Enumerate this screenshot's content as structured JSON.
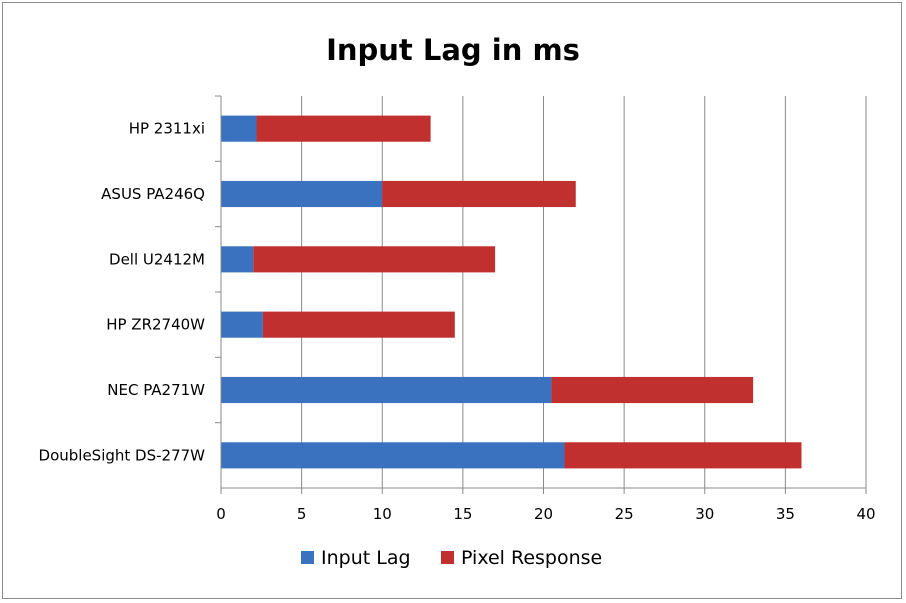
{
  "chart_data": {
    "type": "bar",
    "orientation": "horizontal",
    "stacked": true,
    "title": "Input Lag in ms",
    "xlabel": "",
    "ylabel": "",
    "categories": [
      "HP 2311xi",
      "ASUS PA246Q",
      "Dell U2412M",
      "HP ZR2740W",
      "NEC PA271W",
      "DoubleSight DS-277W"
    ],
    "series": [
      {
        "name": "Input Lag",
        "color": "#3b72c0",
        "values": [
          2.2,
          10.0,
          2.0,
          2.6,
          20.5,
          21.3
        ]
      },
      {
        "name": "Pixel Response",
        "color": "#c0302f",
        "values": [
          10.8,
          12.0,
          15.0,
          11.9,
          12.5,
          14.7
        ]
      }
    ],
    "xlim": [
      0,
      40
    ],
    "xticks": [
      "0",
      "5",
      "10",
      "15",
      "20",
      "25",
      "30",
      "35",
      "40"
    ],
    "grid": true,
    "legend": "bottom"
  }
}
